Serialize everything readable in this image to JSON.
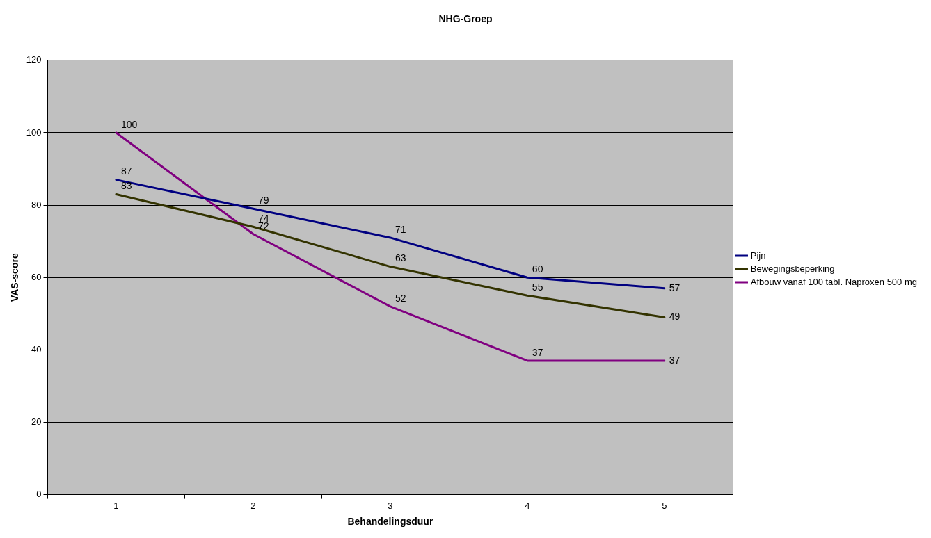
{
  "chart_data": {
    "type": "line",
    "title": "NHG-Groep",
    "xlabel": "Behandelingsduur",
    "ylabel": "VAS-score",
    "categories": [
      "1",
      "2",
      "3",
      "4",
      "5"
    ],
    "series": [
      {
        "name": "Pijn",
        "color": "#000080",
        "values": [
          87,
          79,
          71,
          60,
          57
        ]
      },
      {
        "name": "Bewegingsbeperking",
        "color": "#333300",
        "values": [
          83,
          74,
          63,
          55,
          49
        ]
      },
      {
        "name": "Afbouw vanaf 100 tabl. Naproxen 500 mg",
        "color": "#800080",
        "values": [
          100,
          72,
          52,
          37,
          37
        ]
      }
    ],
    "ylim": [
      0,
      120
    ],
    "yticks": [
      0,
      20,
      40,
      60,
      80,
      100,
      120
    ],
    "grid": "y",
    "legend": "right",
    "marker": "none",
    "line_style": "solid",
    "data_labels": true
  }
}
